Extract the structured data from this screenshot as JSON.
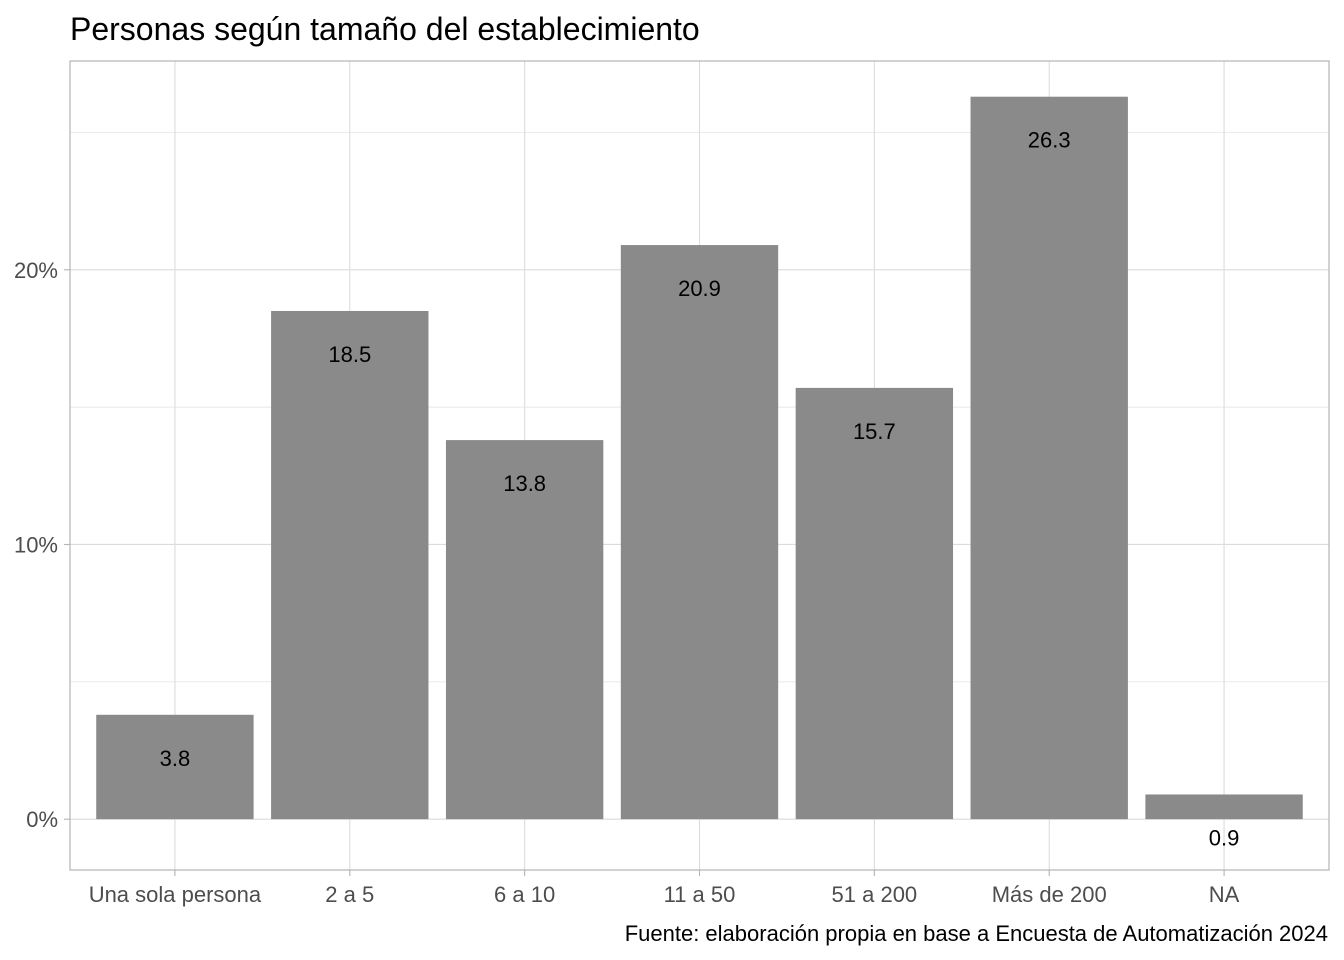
{
  "chart_data": {
    "type": "bar",
    "title": "Personas según tamaño del establecimiento",
    "caption": "Fuente: elaboración propia en base a Encuesta de Automatización 2024",
    "xlabel": "",
    "ylabel": "",
    "categories": [
      "Una sola persona",
      "2 a 5",
      "6 a 10",
      "11 a 50",
      "51 a 200",
      "Más de 200",
      "NA"
    ],
    "values": [
      3.8,
      18.5,
      13.8,
      20.9,
      15.7,
      26.3,
      0.9
    ],
    "data_labels": [
      "3.8",
      "18.5",
      "13.8",
      "20.9",
      "15.7",
      "26.3",
      "0.9"
    ],
    "y_ticks": [
      0,
      10,
      20
    ],
    "y_tick_labels": [
      "0%",
      "10%",
      "20%"
    ],
    "ylim": [
      -1.85,
      27.6
    ],
    "grid": true,
    "legend": "none",
    "bar_color": "#8a8a8a"
  }
}
